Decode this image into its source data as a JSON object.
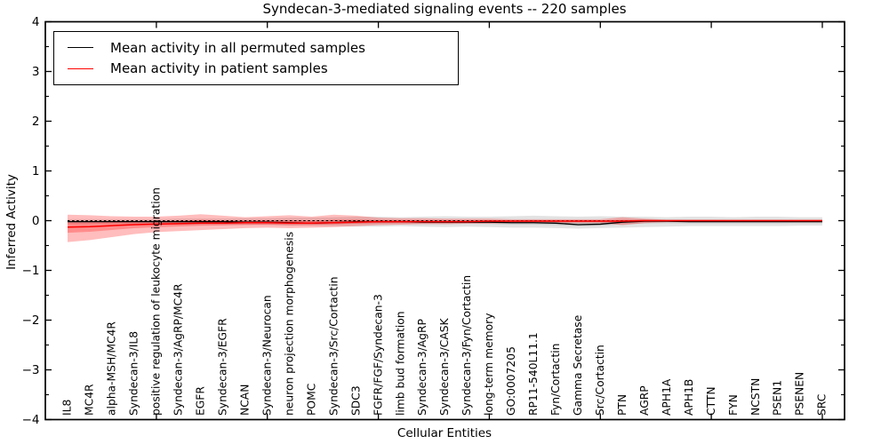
{
  "chart_data": {
    "type": "line",
    "title": "Syndecan-3-mediated signaling events -- 220 samples",
    "xlabel": "Cellular Entities",
    "ylabel": "Inferred Activity",
    "ylim": [
      -4,
      4
    ],
    "yticks": [
      -4,
      -3,
      -2,
      -1,
      0,
      1,
      2,
      3,
      4
    ],
    "grid": false,
    "legend_position": "upper left",
    "zero_line": {
      "style": "dashed",
      "color": "#000000",
      "y": 0
    },
    "categories": [
      "IL8",
      "MC4R",
      "alpha-MSH/MC4R",
      "Syndecan-3/IL8",
      "positive regulation of leukocyte migration",
      "Syndecan-3/AgRP/MC4R",
      "EGFR",
      "Syndecan-3/EGFR",
      "NCAN",
      "Syndecan-3/Neurocan",
      "neuron projection morphogenesis",
      "POMC",
      "Syndecan-3/Src/Cortactin",
      "SDC3",
      "FGFR/FGF/Syndecan-3",
      "limb bud formation",
      "Syndecan-3/AgRP",
      "Syndecan-3/CASK",
      "Syndecan-3/Fyn/Cortactin",
      "long-term memory",
      "GO:0007205",
      "RP11-540L11.1",
      "Fyn/Cortactin",
      "Gamma Secretase",
      "Src/Cortactin",
      "PTN",
      "AGRP",
      "APH1A",
      "APH1B",
      "CTTN",
      "FYN",
      "NCSTN",
      "PSEN1",
      "PSENEN",
      "SRC"
    ],
    "series": [
      {
        "name": "Mean activity in all permuted samples",
        "color": "#000000",
        "values": [
          -0.02,
          -0.02,
          -0.02,
          -0.02,
          -0.02,
          -0.02,
          -0.02,
          -0.02,
          -0.03,
          -0.03,
          -0.04,
          -0.05,
          -0.04,
          -0.02,
          -0.02,
          -0.02,
          -0.03,
          -0.03,
          -0.03,
          -0.03,
          -0.04,
          -0.04,
          -0.05,
          -0.08,
          -0.07,
          -0.03,
          -0.01,
          -0.01,
          -0.02,
          -0.02,
          -0.02,
          -0.02,
          -0.02,
          -0.02,
          -0.02
        ]
      },
      {
        "name": "Mean activity in patient samples",
        "color": "#ff0000",
        "values": [
          -0.13,
          -0.12,
          -0.1,
          -0.08,
          -0.07,
          -0.06,
          -0.05,
          -0.05,
          -0.04,
          -0.04,
          -0.05,
          -0.05,
          -0.04,
          -0.03,
          -0.02,
          -0.02,
          -0.02,
          -0.02,
          -0.02,
          -0.01,
          -0.01,
          -0.01,
          -0.01,
          -0.01,
          -0.01,
          -0.01,
          0.0,
          0.0,
          0.0,
          0.0,
          0.0,
          0.0,
          0.0,
          0.0,
          0.0
        ]
      }
    ],
    "bands": [
      {
        "name": "permuted-samples-band",
        "color": "rgba(0,0,0,0.11)",
        "upper": [
          0.03,
          0.03,
          0.03,
          0.03,
          0.03,
          0.04,
          0.04,
          0.04,
          0.05,
          0.05,
          0.06,
          0.06,
          0.07,
          0.08,
          0.08,
          0.07,
          0.08,
          0.09,
          0.08,
          0.08,
          0.09,
          0.1,
          0.09,
          0.08,
          0.09,
          0.08,
          0.08,
          0.07,
          0.08,
          0.08,
          0.07,
          0.08,
          0.08,
          0.07,
          0.07
        ],
        "lower": [
          -0.07,
          -0.07,
          -0.07,
          -0.07,
          -0.07,
          -0.08,
          -0.08,
          -0.08,
          -0.09,
          -0.09,
          -0.1,
          -0.1,
          -0.11,
          -0.12,
          -0.12,
          -0.11,
          -0.12,
          -0.13,
          -0.12,
          -0.13,
          -0.14,
          -0.14,
          -0.15,
          -0.16,
          -0.15,
          -0.14,
          -0.13,
          -0.12,
          -0.11,
          -0.11,
          -0.11,
          -0.11,
          -0.11,
          -0.1,
          -0.1
        ]
      },
      {
        "name": "patient-samples-band",
        "color": "rgba(255,0,0,0.26)",
        "upper": [
          0.12,
          0.11,
          0.09,
          0.08,
          0.08,
          0.1,
          0.13,
          0.1,
          0.07,
          0.09,
          0.11,
          0.08,
          0.12,
          0.1,
          0.06,
          0.05,
          0.05,
          0.04,
          0.04,
          0.04,
          0.03,
          0.03,
          0.03,
          0.03,
          0.03,
          0.07,
          0.04,
          0.02,
          0.02,
          0.02,
          0.02,
          0.02,
          0.02,
          0.02,
          0.02
        ],
        "lower": [
          -0.43,
          -0.39,
          -0.33,
          -0.27,
          -0.23,
          -0.21,
          -0.19,
          -0.17,
          -0.15,
          -0.14,
          -0.15,
          -0.14,
          -0.13,
          -0.11,
          -0.09,
          -0.08,
          -0.07,
          -0.07,
          -0.06,
          -0.06,
          -0.05,
          -0.05,
          -0.05,
          -0.05,
          -0.05,
          -0.09,
          -0.05,
          -0.03,
          -0.03,
          -0.03,
          -0.03,
          -0.03,
          -0.03,
          -0.03,
          -0.03
        ]
      }
    ]
  },
  "legend": {
    "entries": [
      {
        "label": "Mean activity in all permuted samples",
        "color": "#000000"
      },
      {
        "label": "Mean activity in patient samples",
        "color": "#ff0000"
      }
    ]
  }
}
